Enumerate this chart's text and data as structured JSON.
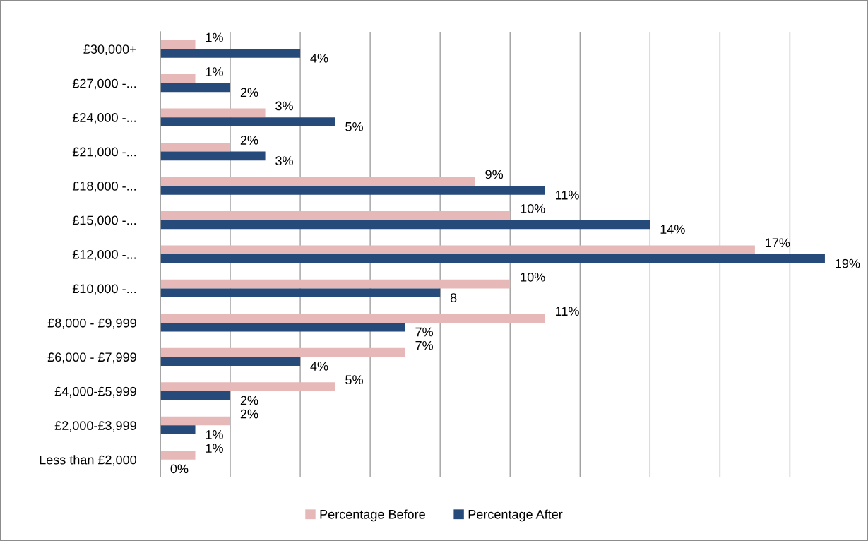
{
  "chart_data": {
    "type": "bar",
    "orientation": "horizontal",
    "categories": [
      "£30,000+",
      "£27,000 -...",
      "£24,000 -...",
      "£21,000 -...",
      "£18,000 -...",
      "£15,000 -...",
      "£12,000 -...",
      "£10,000 -...",
      "£8,000 - £9,999",
      "£6,000 - £7,999",
      "£4,000-£5,999",
      "£2,000-£3,999",
      "Less than £2,000"
    ],
    "series": [
      {
        "name": "Percentage Before",
        "color": "#e6b9b8",
        "values": [
          1,
          1,
          3,
          2,
          9,
          10,
          17,
          10,
          11,
          7,
          5,
          2,
          1
        ],
        "value_labels": [
          "1%",
          "1%",
          "3%",
          "2%",
          "9%",
          "10%",
          "17%",
          "10%",
          "11%",
          "7%",
          "5%",
          "2%",
          "1%"
        ]
      },
      {
        "name": "Percentage After",
        "color": "#264a7a",
        "values": [
          4,
          2,
          5,
          3,
          11,
          14,
          19,
          8,
          7,
          4,
          2,
          1,
          0
        ],
        "value_labels": [
          "4%",
          "2%",
          "5%",
          "3%",
          "11%",
          "14%",
          "19%",
          "8",
          "7%",
          "4%",
          "2%",
          "1%",
          "0%"
        ]
      }
    ],
    "xticks": [
      {
        "value": 0,
        "label": null
      },
      {
        "value": 2,
        "label": null
      },
      {
        "value": 4,
        "label": null
      },
      {
        "value": 6,
        "label": null
      },
      {
        "value": 8,
        "label": null
      },
      {
        "value": 10,
        "label": null
      },
      {
        "value": 12,
        "label": null
      },
      {
        "value": 14,
        "label": null
      },
      {
        "value": 16,
        "label": null
      },
      {
        "value": 18,
        "label": null
      }
    ],
    "grid": "x",
    "legend": "bottom",
    "tick_labels": "y"
  }
}
